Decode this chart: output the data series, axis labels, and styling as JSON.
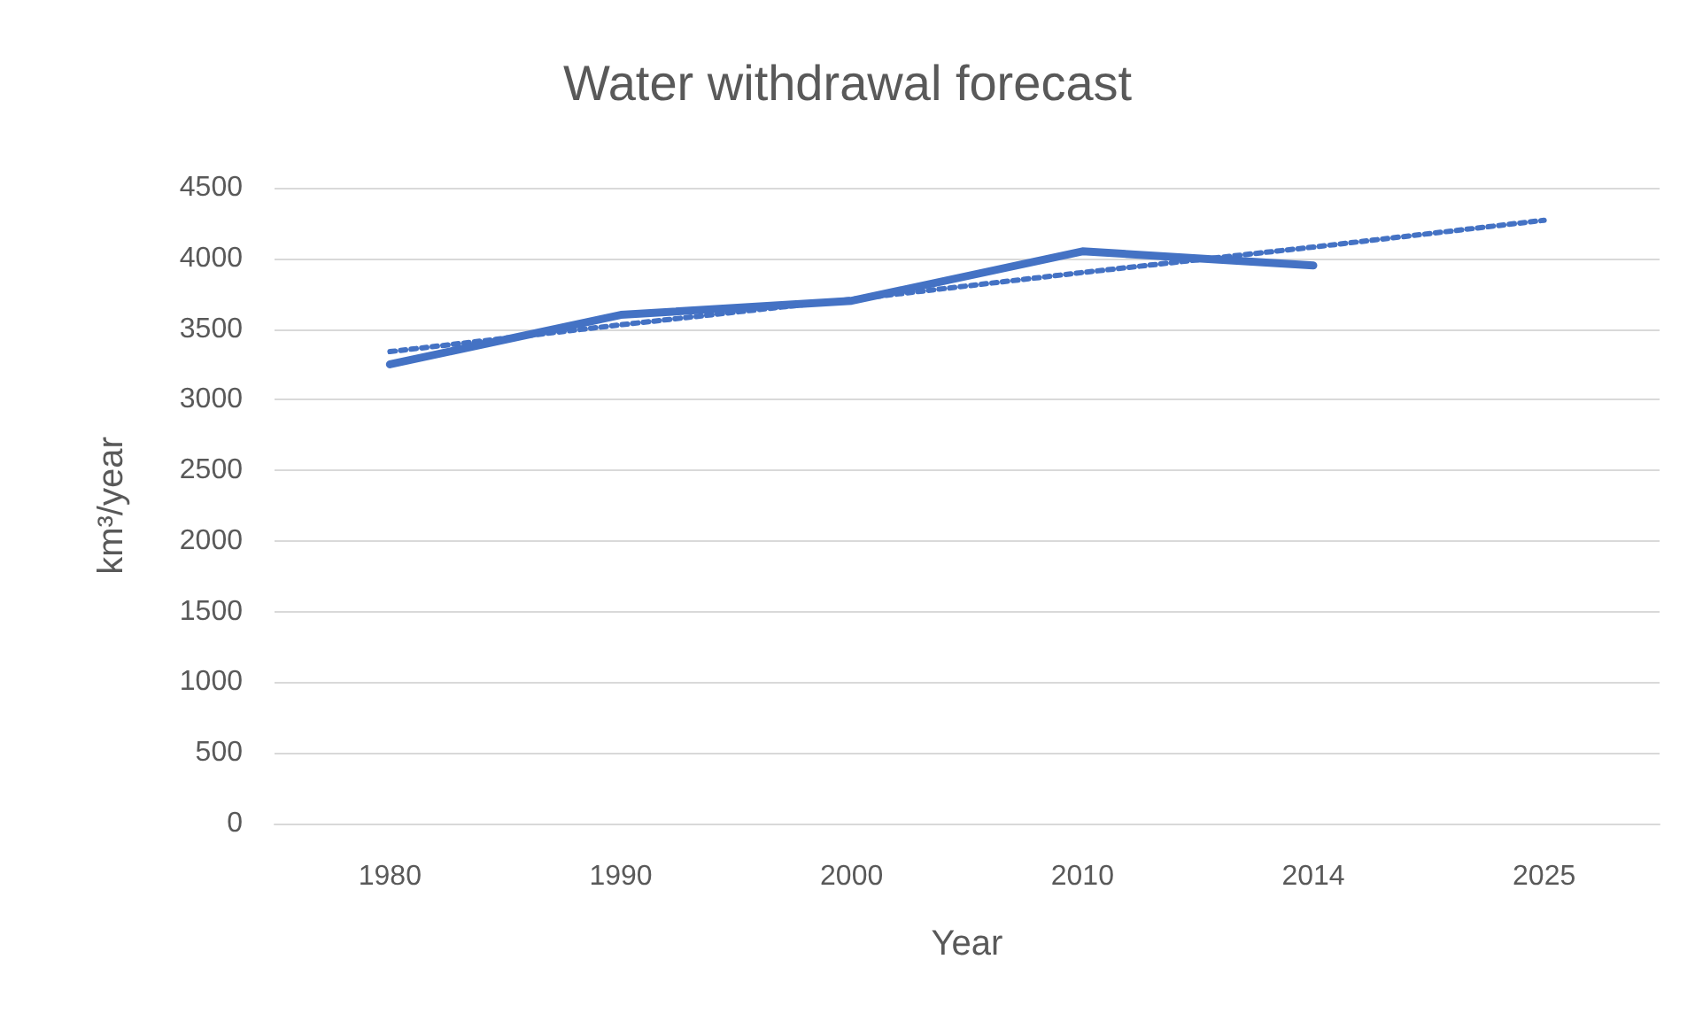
{
  "chart_data": {
    "type": "line",
    "title": "Water withdrawal forecast",
    "xlabel": "Year",
    "ylabel": "km³/year",
    "categories": [
      "1980",
      "1990",
      "2000",
      "2010",
      "2014",
      "2025"
    ],
    "series": [
      {
        "color": "#4472c4",
        "values": [
          3250,
          3600,
          3700,
          4050,
          3950,
          null
        ],
        "line_style": "solid"
      },
      {
        "color": "#4472c4",
        "values": [
          3340,
          3530,
          3710,
          3900,
          4080,
          4270
        ],
        "line_style": "dotted"
      }
    ],
    "ylim": [
      0,
      4500
    ],
    "yticks": [
      0,
      500,
      1000,
      1500,
      2000,
      2500,
      3000,
      3500,
      4000,
      4500
    ],
    "grid": "y",
    "marker": "none"
  }
}
